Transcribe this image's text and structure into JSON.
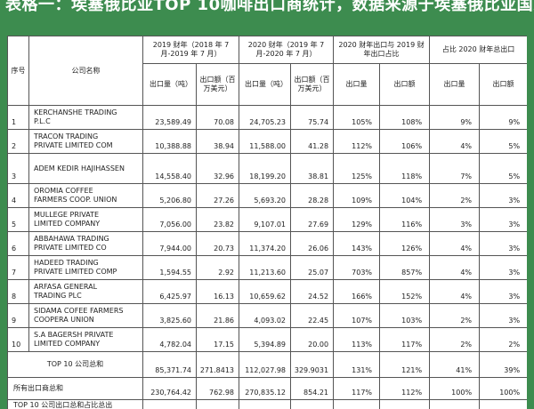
{
  "title": "表格一：埃塞俄比亚TOP 10咖啡出口商统计，数据来源于埃塞俄比亚国家银行",
  "headers": {
    "no": "序号",
    "company": "公司名称",
    "fy2019": "2019 财年（2018 年 7 月-2019 年 7 月）",
    "fy2020": "2020 财年（2019 年 7 月-2020 年 7 月）",
    "ratio": "2020 财年出口与 2019 财年出口占比",
    "share": "占比 2020 财年总出口",
    "volume": "出口量（吨）",
    "value_2019": "出口额（百万美元）",
    "value_2020": "出口额（百万美元）",
    "ratio_volume": "出口量",
    "ratio_value": "出口额",
    "share_volume": "出口量",
    "share_value": "出口额"
  },
  "rows": [
    {
      "no": "1",
      "name": "KERCHANSHE TRADING\nP.L.C",
      "v19": "23,589.49",
      "a19": "70.08",
      "v20": "24,705.23",
      "a20": "75.74",
      "rv": "105%",
      "ra": "108%",
      "sv": "9%",
      "sa": "9%"
    },
    {
      "no": "2",
      "name": "TRACON TRADING\nPRIVATE  LIMITED COM",
      "v19": "10,388.88",
      "a19": "38.94",
      "v20": "11,588.00",
      "a20": "41.28",
      "rv": "112%",
      "ra": "106%",
      "sv": "4%",
      "sa": "5%"
    },
    {
      "no": "3",
      "name": "ADEM KEDIR HAJIHASSEN",
      "v19": "14,558.40",
      "a19": "32.96",
      "v20": "18,199.20",
      "a20": "38.81",
      "rv": "125%",
      "ra": "118%",
      "sv": "7%",
      "sa": "5%"
    },
    {
      "no": "4",
      "name": "OROMIA COFFEE\nFARMERS COOP. UNION",
      "v19": "5,206.80",
      "a19": "27.26",
      "v20": "5,693.20",
      "a20": "28.28",
      "rv": "109%",
      "ra": "104%",
      "sv": "2%",
      "sa": "3%"
    },
    {
      "no": "5",
      "name": "MULLEGE PRIVATE\nLIMITED COMPANY",
      "v19": "7,056.00",
      "a19": "23.82",
      "v20": "9,107.01",
      "a20": "27.69",
      "rv": "129%",
      "ra": "116%",
      "sv": "3%",
      "sa": "3%"
    },
    {
      "no": "6",
      "name": "ABBAHAWA TRADING\nPRIVATE LIMITED CO",
      "v19": "7,944.00",
      "a19": "20.73",
      "v20": "11,374.20",
      "a20": "26.06",
      "rv": "143%",
      "ra": "126%",
      "sv": "4%",
      "sa": "3%"
    },
    {
      "no": "7",
      "name": "HADEED TRADING\nPRIVATE LIMITED COMP",
      "v19": "1,594.55",
      "a19": "2.92",
      "v20": "11,213.60",
      "a20": "25.07",
      "rv": "703%",
      "ra": "857%",
      "sv": "4%",
      "sa": "3%"
    },
    {
      "no": "8",
      "name": "ARFASA GENERAL\nTRADING PLC",
      "v19": "6,425.97",
      "a19": "16.13",
      "v20": "10,659.62",
      "a20": "24.52",
      "rv": "166%",
      "ra": "152%",
      "sv": "4%",
      "sa": "3%"
    },
    {
      "no": "9",
      "name": "SIDAMA COFEE FARMERS\nCOOPERA UNION",
      "v19": "3,825.60",
      "a19": "21.86",
      "v20": "4,093.02",
      "a20": "22.45",
      "rv": "107%",
      "ra": "103%",
      "sv": "2%",
      "sa": "3%"
    },
    {
      "no": "10",
      "name": "S.A BAGERSH PRIVATE\nLIMITED COMPANY",
      "v19": "4,782.04",
      "a19": "17.15",
      "v20": "5,394.89",
      "a20": "20.00",
      "rv": "113%",
      "ra": "117%",
      "sv": "2%",
      "sa": "2%"
    }
  ],
  "top10": {
    "label": "TOP 10 公司总和",
    "v19": "85,371.74",
    "a19": "271.8413",
    "v20": "112,027.98",
    "a20": "329.9031",
    "rv": "131%",
    "ra": "121%",
    "sv": "41%",
    "sa": "39%"
  },
  "all": {
    "label": "所有出口商总和",
    "v19": "230,764.42",
    "a19": "762.98",
    "v20": "270,835.12",
    "a20": "854.21",
    "rv": "117%",
    "ra": "112%",
    "sv": "100%",
    "sa": "100%"
  },
  "cut_label": "TOP 10 公司出口总和占比总出"
}
